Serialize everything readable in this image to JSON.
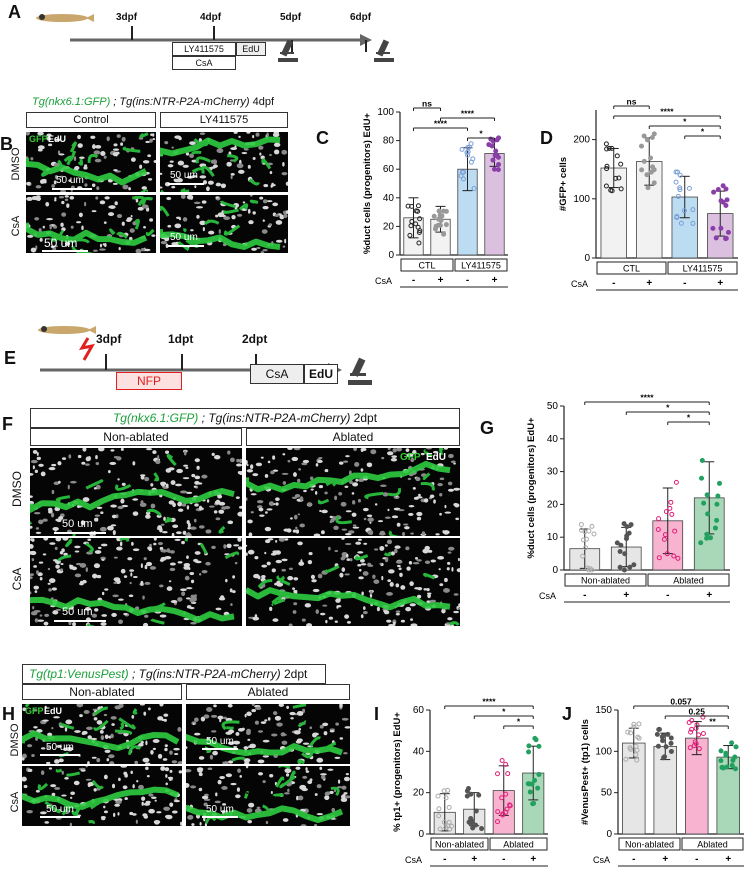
{
  "panels": {
    "A": {
      "letter": "A",
      "timeline": [
        "3dpf",
        "4dpf",
        "5dpf",
        "6dpf"
      ],
      "boxes": [
        "LY411575",
        "EdU",
        "CsA"
      ]
    },
    "B": {
      "letter": "B",
      "genotype_green": "Tg(nkx6.1:GFP)",
      "genotype_rest": " ; Tg(ins:NTR-P2A-mCherry)",
      "stage": "4dpf",
      "cols": [
        "Control",
        "LY411575"
      ],
      "rows": [
        "DMSO",
        "CsA"
      ],
      "channel_gfp": "GFP",
      "channel_edu": "EdU",
      "scale": "50 um"
    },
    "E": {
      "letter": "E",
      "timeline": [
        "3dpf",
        "1dpt",
        "2dpt"
      ],
      "boxes": [
        "NFP",
        "CsA",
        "EdU"
      ]
    },
    "F": {
      "letter": "F",
      "genotype_green": "Tg(nkx6.1:GFP)",
      "genotype_rest": " ; Tg(ins:NTR-P2A-mCherry)",
      "stage": "2dpt",
      "cols": [
        "Non-ablated",
        "Ablated"
      ],
      "rows": [
        "DMSO",
        "CsA"
      ],
      "channel_gfp": "GFP",
      "channel_edu": "EdU",
      "scale": "50 um"
    },
    "H": {
      "letter": "H",
      "genotype_green": "Tg(tp1:VenusPest)",
      "genotype_rest": " ; Tg(ins:NTR-P2A-mCherry)",
      "stage": "2dpt",
      "cols": [
        "Non-ablated",
        "Ablated"
      ],
      "rows": [
        "DMSO",
        "CsA"
      ],
      "channel_gfp": "GFP",
      "channel_edu": "EdU",
      "scale": "50 um"
    }
  },
  "chart_data": [
    {
      "id": "C",
      "letter": "C",
      "type": "bar",
      "ylabel": "%duct cells (progenitors) EdU+",
      "ylim": [
        0,
        100
      ],
      "yticks": [
        0,
        20,
        40,
        60,
        80,
        100
      ],
      "values": [
        26,
        25,
        60,
        71
      ],
      "errors": [
        14,
        9,
        15,
        9
      ],
      "colors": [
        "#f2f2f2",
        "#f2f2f2",
        "#bcdcf2",
        "#dcc0e0"
      ],
      "point_colors": [
        "#222222",
        "#999999",
        "#7b9fd8",
        "#8a3fa8"
      ],
      "groups": [
        "CTL",
        "LY411575"
      ],
      "treatment_label": "CsA",
      "treatment": [
        "-",
        "+",
        "-",
        "+"
      ],
      "significance": [
        "ns",
        "****",
        "****",
        "*"
      ]
    },
    {
      "id": "D",
      "letter": "D",
      "type": "bar",
      "ylabel": "#GFP+ cells",
      "ylim": [
        0,
        250
      ],
      "yticks": [
        0,
        100,
        200
      ],
      "values": [
        152,
        163,
        103,
        75
      ],
      "errors": [
        33,
        40,
        35,
        38
      ],
      "colors": [
        "#f2f2f2",
        "#f2f2f2",
        "#bcdcf2",
        "#dcc0e0"
      ],
      "point_colors": [
        "#222222",
        "#999999",
        "#7b9fd8",
        "#8a3fa8"
      ],
      "groups": [
        "CTL",
        "LY411575"
      ],
      "treatment_label": "CsA",
      "treatment": [
        "-",
        "+",
        "-",
        "+"
      ],
      "significance": [
        "ns",
        "****",
        "*",
        "*"
      ]
    },
    {
      "id": "G",
      "letter": "G",
      "type": "bar",
      "ylabel": "%duct cells (progenitors) EdU+",
      "ylim": [
        0,
        50
      ],
      "yticks": [
        0,
        10,
        20,
        30,
        40,
        50
      ],
      "values": [
        6.5,
        7,
        15,
        22
      ],
      "errors": [
        6,
        6,
        10,
        11
      ],
      "colors": [
        "#e6e6e6",
        "#e6e6e6",
        "#f7b3cf",
        "#a8d8b8"
      ],
      "point_colors": [
        "#aaaaaa",
        "#555555",
        "#e02078",
        "#22a060"
      ],
      "groups": [
        "Non-ablated",
        "Ablated"
      ],
      "treatment_label": "CsA",
      "treatment": [
        "-",
        "+",
        "-",
        "+"
      ],
      "significance": [
        "****",
        "*",
        "*"
      ]
    },
    {
      "id": "I",
      "letter": "I",
      "type": "bar",
      "ylabel": "% tp1+ (progenitors) EdU+",
      "ylim": [
        0,
        60
      ],
      "yticks": [
        0,
        20,
        40,
        60
      ],
      "values": [
        10.5,
        12,
        21,
        29.5
      ],
      "errors": [
        9,
        8,
        12,
        13
      ],
      "colors": [
        "#e6e6e6",
        "#e6e6e6",
        "#f7b3cf",
        "#a8d8b8"
      ],
      "point_colors": [
        "#aaaaaa",
        "#555555",
        "#e02078",
        "#22a060"
      ],
      "groups": [
        "Non-ablated",
        "Ablated"
      ],
      "treatment_label": "CsA",
      "treatment": [
        "-",
        "+",
        "-",
        "+"
      ],
      "significance": [
        "****",
        "*",
        "*"
      ]
    },
    {
      "id": "J",
      "letter": "J",
      "type": "bar",
      "ylabel": "#VenusPest+ (tp1) cells",
      "ylim": [
        0,
        150
      ],
      "yticks": [
        0,
        50,
        100,
        150
      ],
      "values": [
        110,
        106,
        116,
        93
      ],
      "errors": [
        18,
        16,
        20,
        14
      ],
      "colors": [
        "#e6e6e6",
        "#e6e6e6",
        "#f7b3cf",
        "#a8d8b8"
      ],
      "point_colors": [
        "#aaaaaa",
        "#555555",
        "#e02078",
        "#22a060"
      ],
      "groups": [
        "Non-ablated",
        "Ablated"
      ],
      "treatment_label": "CsA",
      "treatment": [
        "-",
        "+",
        "-",
        "+"
      ],
      "significance": [
        "0.057",
        "0.25",
        "**"
      ]
    }
  ]
}
